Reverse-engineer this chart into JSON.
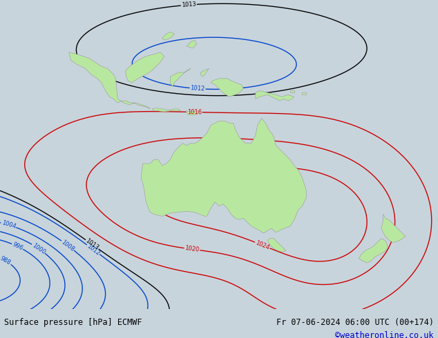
{
  "title_left": "Surface pressure [hPa] ECMWF",
  "title_right": "Fr 07-06-2024 06:00 UTC (00+174)",
  "credit": "©weatheronline.co.uk",
  "bg_color": "#c8d4dc",
  "land_color": "#b8e8a0",
  "sea_color": "#c8d4dc",
  "fig_width": 6.34,
  "fig_height": 4.9,
  "dpi": 100,
  "red_color": "#cc0000",
  "blue_color": "#0044cc",
  "black_color": "#000000",
  "title_fontsize": 8.5,
  "credit_color": "#0000cc"
}
